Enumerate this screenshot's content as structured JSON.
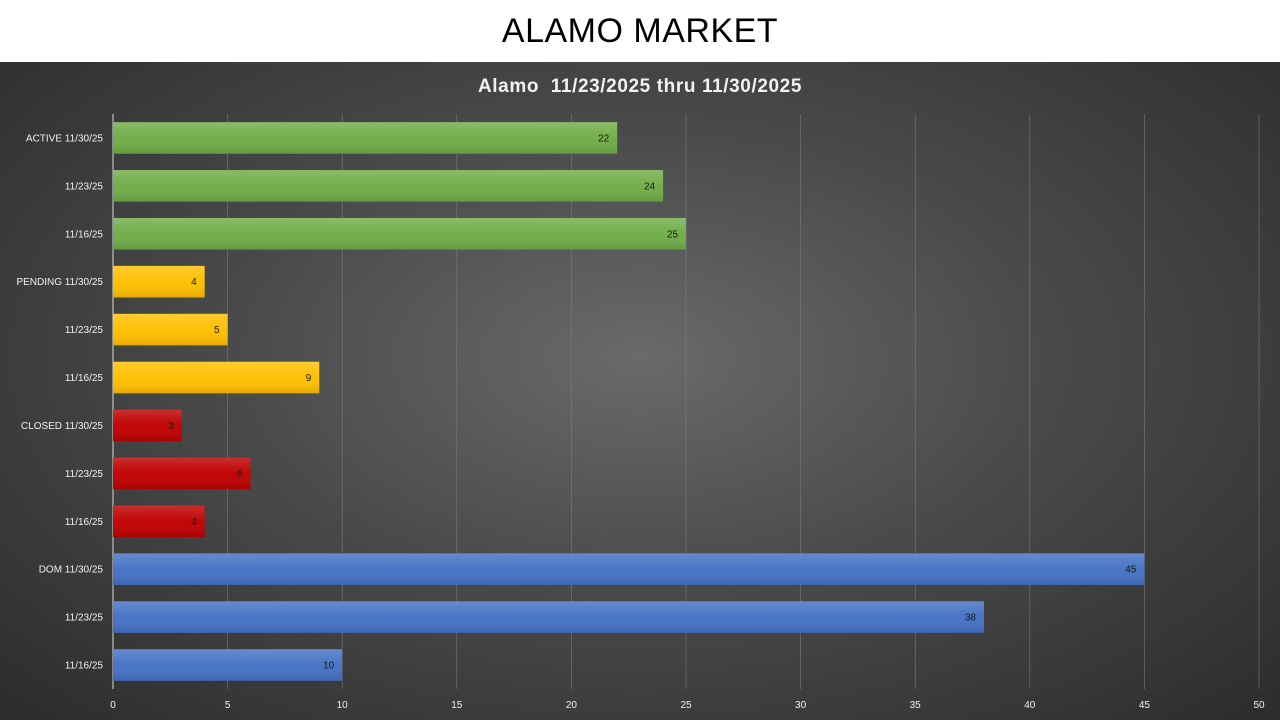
{
  "page": {
    "title": "ALAMO MARKET"
  },
  "chart_data": {
    "type": "bar",
    "orientation": "horizontal",
    "title": "Alamo  11/23/2025 thru 11/30/2025",
    "categories": [
      "ACTIVE 11/30/25",
      "11/23/25",
      "11/16/25",
      "PENDING 11/30/25",
      "11/23/25",
      "11/16/25",
      "CLOSED 11/30/25",
      "11/23/25",
      "11/16/25",
      "DOM 11/30/25",
      "11/23/25",
      "11/16/25"
    ],
    "values": [
      22,
      24,
      25,
      4,
      5,
      9,
      3,
      6,
      4,
      45,
      38,
      10
    ],
    "bar_colors": [
      "#70ad47",
      "#70ad47",
      "#70ad47",
      "#ffc000",
      "#ffc000",
      "#ffc000",
      "#c00000",
      "#c00000",
      "#c00000",
      "#4472c4",
      "#4472c4",
      "#4472c4"
    ],
    "xlim": [
      0,
      50
    ],
    "xticks": [
      0,
      5,
      10,
      15,
      20,
      25,
      30,
      35,
      40,
      45,
      50
    ],
    "grid": true,
    "legend": "none",
    "data_labels": true
  }
}
